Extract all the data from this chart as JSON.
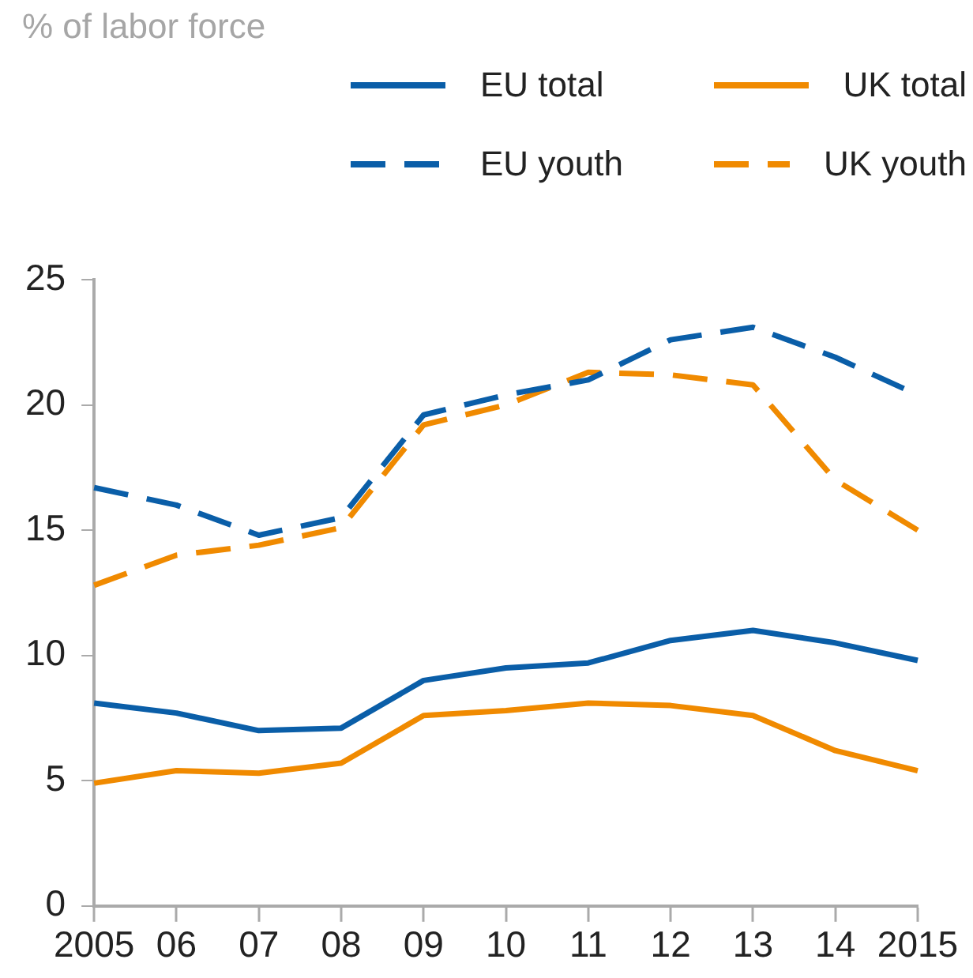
{
  "chart_data": {
    "type": "line",
    "subtitle": "% of labor force",
    "categories": [
      "2005",
      "06",
      "07",
      "08",
      "09",
      "10",
      "11",
      "12",
      "13",
      "14",
      "2015"
    ],
    "series": [
      {
        "name": "EU total",
        "color": "#0a5ea8",
        "line_style": "solid",
        "values": [
          8.1,
          7.7,
          7.0,
          7.1,
          9.0,
          9.5,
          9.7,
          10.6,
          11.0,
          10.5,
          9.8
        ]
      },
      {
        "name": "UK total",
        "color": "#f08a00",
        "line_style": "solid",
        "values": [
          4.9,
          5.4,
          5.3,
          5.7,
          7.6,
          7.8,
          8.1,
          8.0,
          7.6,
          6.2,
          5.4
        ]
      },
      {
        "name": "EU youth",
        "color": "#0a5ea8",
        "line_style": "dashed",
        "values": [
          16.7,
          16.0,
          14.8,
          15.5,
          19.6,
          20.4,
          21.0,
          22.6,
          23.1,
          21.9,
          20.4
        ]
      },
      {
        "name": "UK youth",
        "color": "#f08a00",
        "line_style": "dashed",
        "values": [
          12.8,
          14.0,
          14.4,
          15.1,
          19.2,
          20.0,
          21.3,
          21.2,
          20.8,
          17.0,
          15.0
        ]
      }
    ],
    "ylim": [
      0,
      25
    ],
    "yticks": [
      0,
      5,
      10,
      15,
      20,
      25
    ],
    "grid": false,
    "legend": "top right",
    "marker": "none"
  }
}
